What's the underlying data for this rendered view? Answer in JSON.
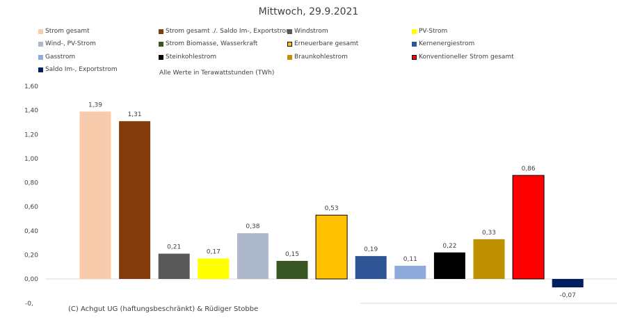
{
  "chart_data": {
    "type": "bar",
    "title": "Mittwoch, 29.9.2021",
    "subtitle": "Alle Werte in Terawattstunden (TWh)",
    "categories": [
      "Strom gesamt",
      "Strom gesamt ./. Saldo Im-, Exportstrom",
      "Windstrom",
      "PV-Strom",
      "Wind-, PV-Strom",
      "Strom Biomasse, Wasserkraft",
      "Erneuerbare gesamt",
      "Kernenergiestrom",
      "Gasstrom",
      "Steinkohlestrom",
      "Braunkohlestrom",
      "Konventioneller Strom gesamt",
      "Saldo Im-, Exportstrom"
    ],
    "values": [
      1.39,
      1.31,
      0.21,
      0.17,
      0.38,
      0.15,
      0.53,
      0.19,
      0.11,
      0.22,
      0.33,
      0.86,
      -0.07
    ],
    "data_labels": [
      "1,39",
      "1,31",
      "0,21",
      "0,17",
      "0,38",
      "0,15",
      "0,53",
      "0,19",
      "0,11",
      "0,22",
      "0,33",
      "0,86",
      "-0,07"
    ],
    "colors": [
      "#F8CBAD",
      "#843C0C",
      "#595959",
      "#FFFF00",
      "#ADB9CA",
      "#375623",
      "#FFC000",
      "#2F5597",
      "#8FAADC",
      "#000000",
      "#BF9000",
      "#FF0000",
      "#002060"
    ],
    "outlined": [
      false,
      false,
      false,
      false,
      false,
      false,
      true,
      false,
      false,
      false,
      false,
      true,
      false
    ],
    "ylim": [
      -0.2,
      1.6
    ],
    "yticks": [
      "1,60",
      "1,40",
      "1,20",
      "1,00",
      "0,80",
      "0,60",
      "0,40",
      "0,20",
      "0,00"
    ],
    "ytick_values": [
      1.6,
      1.4,
      1.2,
      1.0,
      0.8,
      0.6,
      0.4,
      0.2,
      0.0
    ],
    "ytick_cut": "-0,",
    "grid": false,
    "legend_position": "top"
  },
  "copyright": "(C) Achgut UG (haftungsbeschränkt) & Rüdiger Stobbe"
}
